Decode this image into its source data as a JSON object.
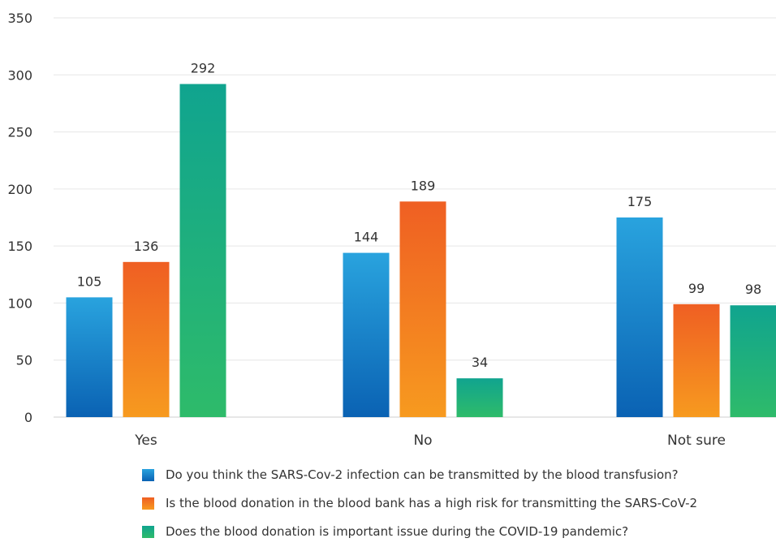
{
  "chart_data": {
    "type": "bar",
    "categories": [
      "Yes",
      "No",
      "Not sure"
    ],
    "series": [
      {
        "name": "Do you think the SARS-Cov-2 infection can be transmitted by the blood transfusion?",
        "values": [
          105,
          144,
          175
        ],
        "color_top": "#29a3de",
        "color_bottom": "#0a62b3"
      },
      {
        "name": "Is the blood donation in the blood bank has a high risk for transmitting the SARS-CoV-2",
        "values": [
          136,
          189,
          99
        ],
        "color_top": "#ef5f23",
        "color_bottom": "#f79a1f"
      },
      {
        "name": "Does the blood donation is important issue during the COVID-19 pandemic?",
        "values": [
          292,
          34,
          98
        ],
        "color_top": "#10a48f",
        "color_bottom": "#2ebb6a"
      }
    ],
    "ylim": [
      0,
      350
    ],
    "yticks": [
      0,
      50,
      100,
      150,
      200,
      250,
      300,
      350
    ],
    "grid": true,
    "legend_position": "bottom"
  }
}
